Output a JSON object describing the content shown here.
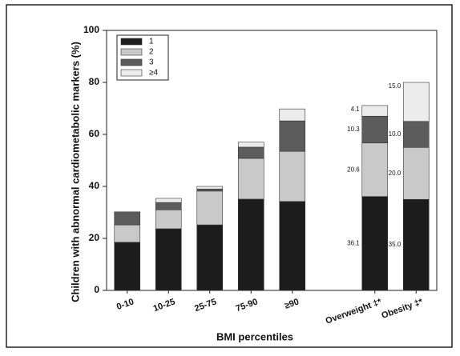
{
  "chart_data": {
    "type": "stacked_bar",
    "ylabel": "Children with abnormal cardiometabolic markers (%)",
    "xlabel": "BMI percentiles",
    "categories": [
      "0-10",
      "10-25",
      "25-75",
      "75-90",
      "≥90",
      null,
      "Overweight ‡*",
      "Obesity ‡*"
    ],
    "series": [
      {
        "name": "1",
        "color": "#1c1c1c",
        "values": [
          18.5,
          23.7,
          25.2,
          35.1,
          34.2,
          null,
          36.1,
          35.0
        ],
        "value_labels": [
          null,
          null,
          null,
          null,
          null,
          null,
          "36.1",
          "35.0"
        ]
      },
      {
        "name": "2",
        "color": "#c9c9c9",
        "values": [
          6.7,
          7.3,
          13,
          15.7,
          19.3,
          null,
          20.6,
          20.0
        ],
        "value_labels": [
          null,
          null,
          null,
          null,
          null,
          null,
          "20.6",
          "20.0"
        ]
      },
      {
        "name": "3",
        "color": "#5c5c5c",
        "values": [
          5,
          2.8,
          0.8,
          4.3,
          11.7,
          null,
          10.3,
          10.0
        ],
        "value_labels": [
          null,
          null,
          null,
          null,
          null,
          null,
          "10.3",
          "10.0"
        ]
      },
      {
        "name": "≥4",
        "color": "#ececec",
        "values": [
          0,
          1.6,
          1,
          1.9,
          4.6,
          null,
          4.1,
          15.0
        ],
        "value_labels": [
          null,
          null,
          null,
          null,
          null,
          null,
          "4.1",
          "15.0"
        ]
      }
    ],
    "ylim": [
      0,
      100
    ],
    "yticks": [
      0,
      20,
      40,
      60,
      80,
      100
    ],
    "legend": "upper left"
  }
}
